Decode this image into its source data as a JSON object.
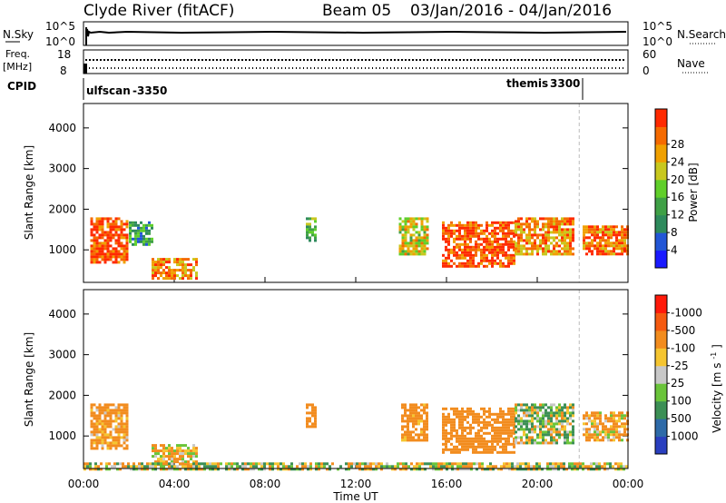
{
  "header": {
    "station": "Clyde River (fitACF)",
    "beam": "Beam 05",
    "dates": "03/Jan/2016 - 04/Jan/2016"
  },
  "top_panels": {
    "nsky": {
      "label": "N.Sky",
      "ticks": [
        "10^5",
        "10^0"
      ]
    },
    "nsearch": {
      "label": "N.Search",
      "ticks": [
        "10^5",
        "10^0"
      ]
    },
    "freq": {
      "label_line1": "Freq.",
      "label_line2": "[MHz]",
      "ticks": [
        "18",
        "8"
      ]
    },
    "nave": {
      "label": "Nave",
      "ticks": [
        "60",
        "0"
      ]
    },
    "cpid": {
      "label": "CPID",
      "programs": [
        {
          "name": "ulfscan",
          "id": "-3350"
        },
        {
          "name": "themis",
          "id": "3300"
        }
      ]
    }
  },
  "chart_data": [
    {
      "type": "heatmap",
      "title": "",
      "xlabel": "Time UT",
      "ylabel": "Slant Range [km]",
      "xlim": [
        "00:00",
        "24:00"
      ],
      "ylim": [
        200,
        4600
      ],
      "x_ticks": [
        "00:00",
        "04:00",
        "08:00",
        "12:00",
        "16:00",
        "20:00",
        "00:00"
      ],
      "y_ticks": [
        1000,
        2000,
        3000,
        4000
      ],
      "colorbar": {
        "label": "Power [dB]",
        "ticks": [
          "4",
          "8",
          "12",
          "16",
          "20",
          "24",
          "28"
        ],
        "colors": [
          "#1a1aff",
          "#2256d6",
          "#2e8a5c",
          "#3fa046",
          "#60cf2a",
          "#c8c81e",
          "#f0a000",
          "#f56a00",
          "#ff2a00"
        ]
      },
      "scatter_regions_approx": [
        {
          "t_start": 0.3,
          "t_end": 1.9,
          "range_min": 700,
          "range_max": 1800,
          "value": 28
        },
        {
          "t_start": 2.0,
          "t_end": 3.0,
          "range_min": 1100,
          "range_max": 1700,
          "value": 12
        },
        {
          "t_start": 3.0,
          "t_end": 5.0,
          "range_min": 300,
          "range_max": 800,
          "value": 24
        },
        {
          "t_start": 9.8,
          "t_end": 10.2,
          "range_min": 1200,
          "range_max": 1800,
          "value": 14
        },
        {
          "t_start": 13.9,
          "t_end": 15.2,
          "range_min": 900,
          "range_max": 1800,
          "value": 20
        },
        {
          "t_start": 15.8,
          "t_end": 19.0,
          "range_min": 600,
          "range_max": 1700,
          "value": 28
        },
        {
          "t_start": 19.0,
          "t_end": 21.6,
          "range_min": 900,
          "range_max": 1800,
          "value": 24
        },
        {
          "t_start": 22.0,
          "t_end": 24.0,
          "range_min": 900,
          "range_max": 1600,
          "value": 26
        }
      ]
    },
    {
      "type": "heatmap",
      "title": "",
      "xlabel": "Time UT",
      "ylabel": "Slant Range [km]",
      "xlim": [
        "00:00",
        "24:00"
      ],
      "ylim": [
        200,
        4600
      ],
      "x_ticks": [
        "00:00",
        "04:00",
        "08:00",
        "12:00",
        "16:00",
        "20:00",
        "00:00"
      ],
      "y_ticks": [
        1000,
        2000,
        3000,
        4000
      ],
      "colorbar": {
        "label": "Velocity",
        "units": "[m s-1]",
        "ticks": [
          "1000",
          "500",
          "100",
          "25",
          "-25",
          "-100",
          "-500",
          "-1000"
        ],
        "colors": [
          "#2a3fbf",
          "#2e6aa8",
          "#3c8f55",
          "#6ac43a",
          "#c8c8c8",
          "#f5c530",
          "#f28c1e",
          "#f55a10",
          "#ff1a0a"
        ]
      },
      "scatter_regions_approx": [
        {
          "t_start": 0.3,
          "t_end": 1.9,
          "range_min": 700,
          "range_max": 1800,
          "value": -200
        },
        {
          "t_start": 3.0,
          "t_end": 5.0,
          "range_min": 300,
          "range_max": 800,
          "value": -100
        },
        {
          "t_start": 9.8,
          "t_end": 10.2,
          "range_min": 1200,
          "range_max": 1800,
          "value": -300
        },
        {
          "t_start": 14.0,
          "t_end": 15.2,
          "range_min": 900,
          "range_max": 1800,
          "value": -250
        },
        {
          "t_start": 15.8,
          "t_end": 19.0,
          "range_min": 600,
          "range_max": 1700,
          "value": -300
        },
        {
          "t_start": 19.0,
          "t_end": 21.6,
          "range_min": 800,
          "range_max": 1800,
          "value": 50
        },
        {
          "t_start": 22.0,
          "t_end": 24.0,
          "range_min": 900,
          "range_max": 1600,
          "value": -150
        },
        {
          "t_start": 0.0,
          "t_end": 24.0,
          "range_min": 200,
          "range_max": 350,
          "value": 0
        }
      ]
    }
  ],
  "velocity_units_display": {
    "main": "[m s",
    "sup": "-1",
    "end": "]"
  }
}
